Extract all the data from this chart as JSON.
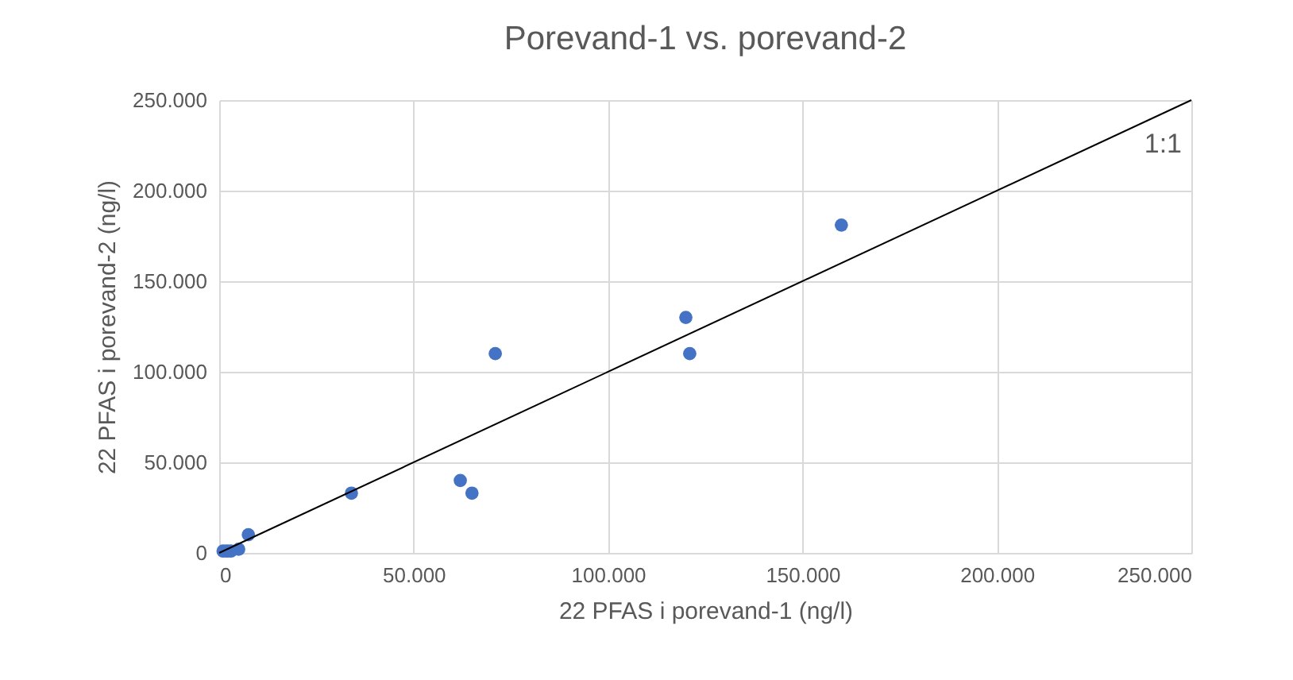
{
  "chart_data": {
    "type": "scatter",
    "title": "Porevand-1 vs. porevand-2",
    "xlabel": "22 PFAS i porevand-1 (ng/l)",
    "ylabel": "22 PFAS i porevand-2 (ng/l)",
    "xlim": [
      0,
      250000
    ],
    "ylim": [
      0,
      250000
    ],
    "xticks": [
      {
        "value": 0,
        "label": "0"
      },
      {
        "value": 50000,
        "label": "50.000"
      },
      {
        "value": 100000,
        "label": "100.000"
      },
      {
        "value": 150000,
        "label": "150.000"
      },
      {
        "value": 200000,
        "label": "200.000"
      },
      {
        "value": 250000,
        "label": "250.000"
      }
    ],
    "yticks": [
      {
        "value": 0,
        "label": "0"
      },
      {
        "value": 50000,
        "label": "50.000"
      },
      {
        "value": 100000,
        "label": "100.000"
      },
      {
        "value": 150000,
        "label": "150.000"
      },
      {
        "value": 200000,
        "label": "200.000"
      },
      {
        "value": 250000,
        "label": "250.000"
      }
    ],
    "grid": true,
    "series": [
      {
        "color": "#4472c4",
        "marker": "circle",
        "x": [
          1000,
          2000,
          3000,
          5000,
          7500,
          34000,
          62000,
          65000,
          71000,
          120000,
          121000,
          160000
        ],
        "values": [
          1000,
          1000,
          1000,
          2000,
          10000,
          33000,
          40000,
          33000,
          110000,
          130000,
          110000,
          181000
        ]
      },
      {
        "type": "line",
        "color": "#000000",
        "marker": "none",
        "x": [
          0,
          250000
        ],
        "values": [
          0,
          250000
        ]
      }
    ],
    "annotations": [
      "1:1"
    ]
  }
}
